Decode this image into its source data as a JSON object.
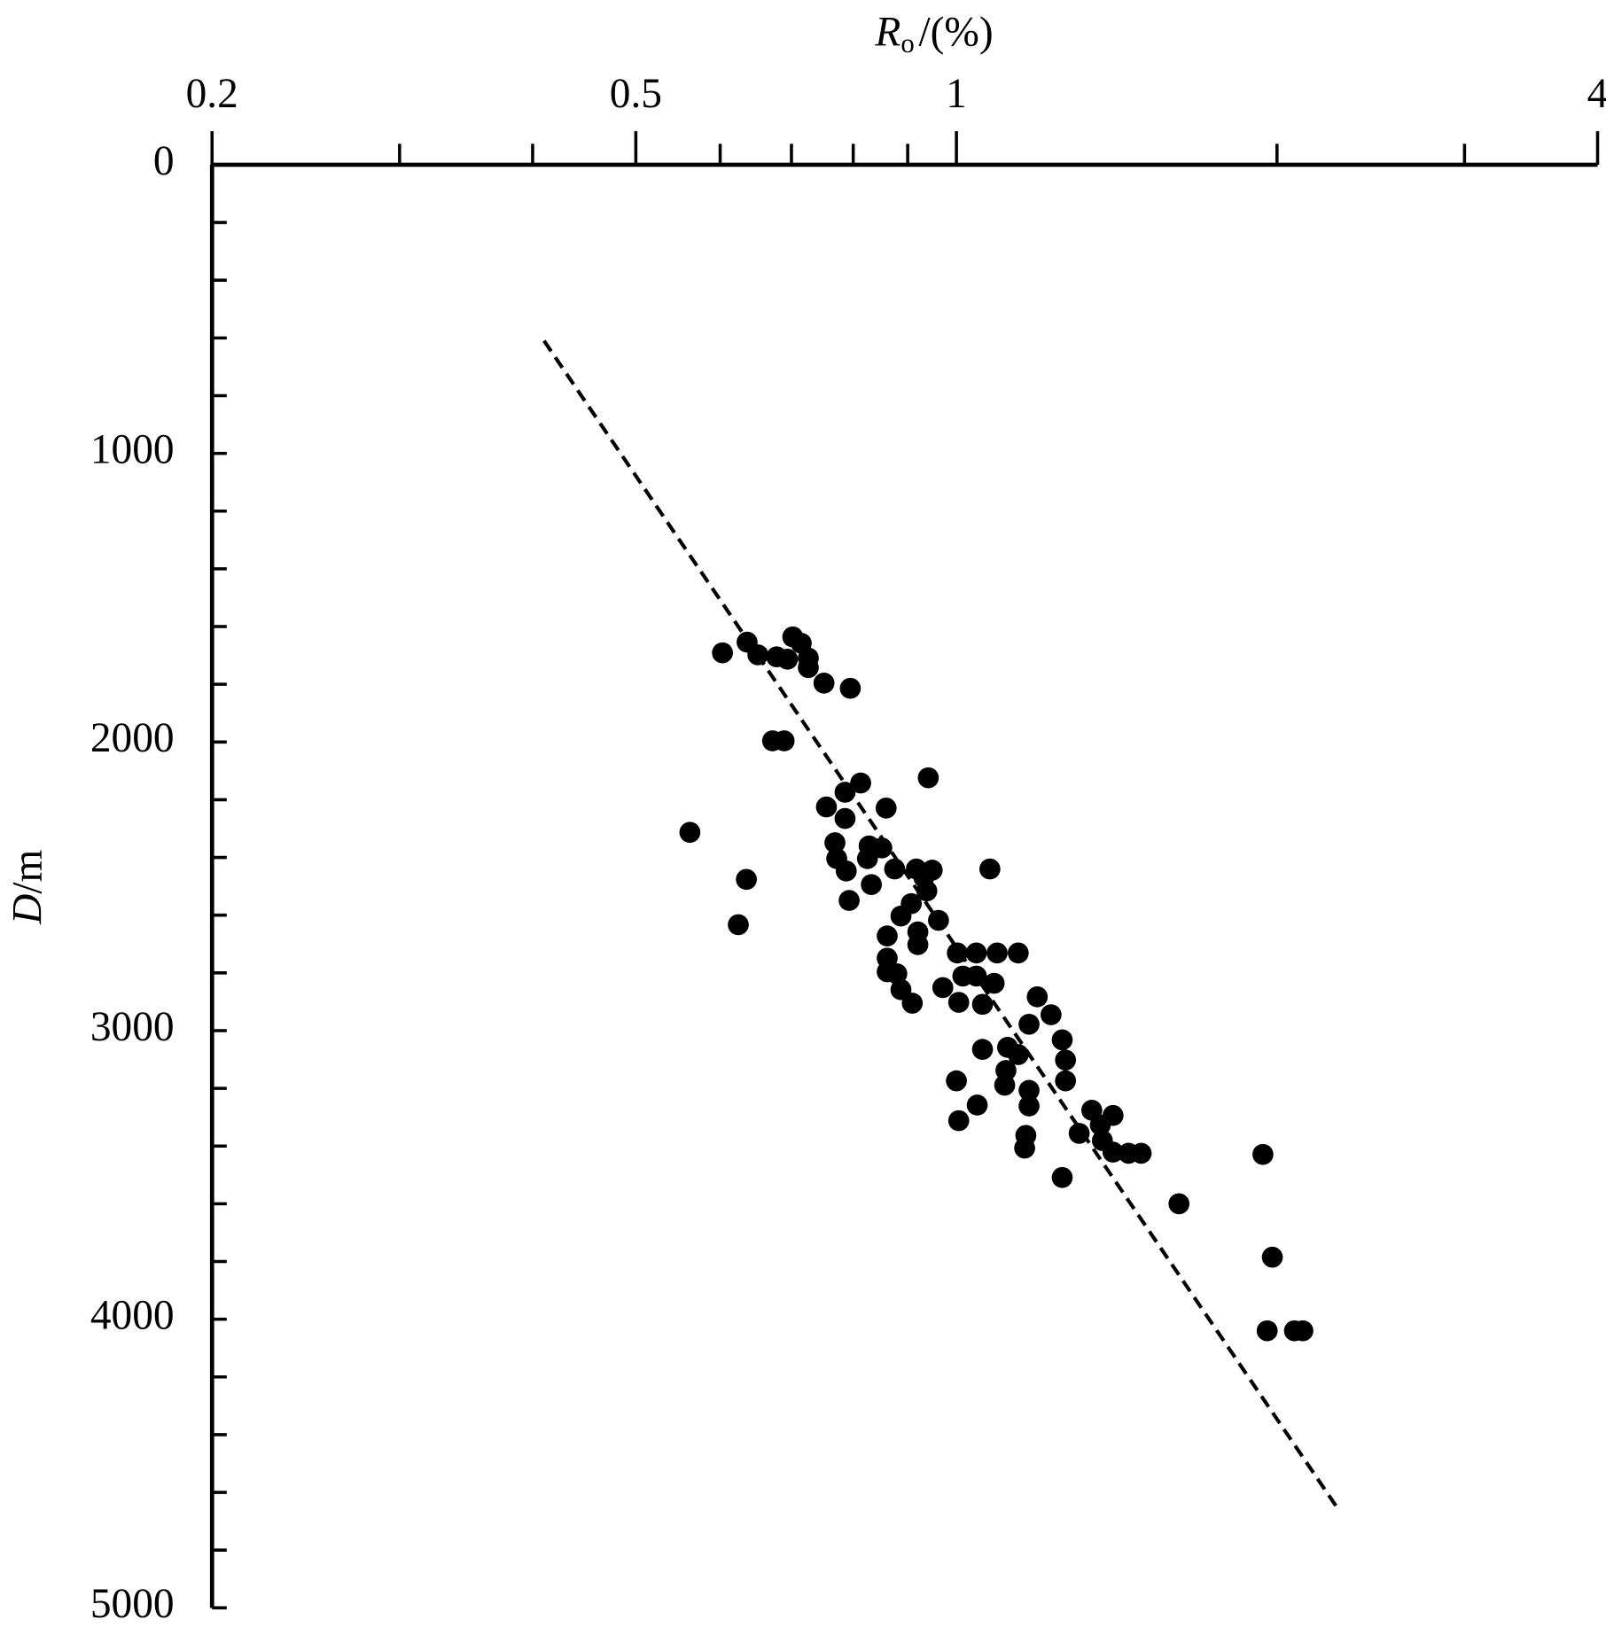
{
  "chart_data": {
    "type": "scatter",
    "x_label": {
      "symbol": "R",
      "subscript": "o",
      "unit": "/(%)"
    },
    "y_label": {
      "symbol": "D",
      "unit": "/m"
    },
    "xscale": "log",
    "xaxis_position": "top",
    "y_inverted": true,
    "xlim": [
      0.2,
      4
    ],
    "xticks": [
      0.2,
      0.5,
      1,
      4
    ],
    "xminor_ticks": [
      0.3,
      0.4,
      0.6,
      0.7,
      0.8,
      0.9,
      2,
      3
    ],
    "ylim": [
      0,
      5000
    ],
    "yticks": [
      0,
      1000,
      2000,
      3000,
      4000,
      5000
    ],
    "yminor_ticks": [
      200,
      400,
      600,
      800,
      1200,
      1400,
      1600,
      1800,
      2200,
      2400,
      2600,
      2800,
      3200,
      3400,
      3600,
      3800,
      4200,
      4400,
      4600,
      4800
    ],
    "color": "#000000",
    "x": [
      0.603,
      0.636,
      0.651,
      0.702,
      0.715,
      0.678,
      0.694,
      0.726,
      0.726,
      0.751,
      0.795,
      0.672,
      0.689,
      0.813,
      0.941,
      0.786,
      0.755,
      0.859,
      0.786,
      0.562,
      0.769,
      0.828,
      0.851,
      0.772,
      0.825,
      0.788,
      0.875,
      0.917,
      0.949,
      1.075,
      0.932,
      0.635,
      0.832,
      0.938,
      0.793,
      0.907,
      0.887,
      0.962,
      0.624,
      0.861,
      0.92,
      0.92,
      0.861,
      1.002,
      1.044,
      1.092,
      1.143,
      0.861,
      0.879,
      1.014,
      1.044,
      1.085,
      0.971,
      0.887,
      1.191,
      1.005,
      1.058,
      0.909,
      1.227,
      1.17,
      1.257,
      1.058,
      1.117,
      1.143,
      1.266,
      1.113,
      1.0,
      1.266,
      1.11,
      1.17,
      1.17,
      1.046,
      1.34,
      1.403,
      1.005,
      1.365,
      1.304,
      1.162,
      1.371,
      1.159,
      1.403,
      1.451,
      1.491,
      1.94,
      1.257,
      1.618,
      1.98,
      1.958,
      2.077,
      2.115
    ],
    "y": [
      1691,
      1654,
      1698,
      1636,
      1658,
      1705,
      1713,
      1709,
      1742,
      1796,
      1814,
      1996,
      1996,
      2142,
      2124,
      2174,
      2225,
      2229,
      2265,
      2313,
      2349,
      2360,
      2367,
      2404,
      2404,
      2447,
      2440,
      2440,
      2444,
      2440,
      2469,
      2476,
      2494,
      2516,
      2549,
      2560,
      2603,
      2618,
      2633,
      2672,
      2658,
      2702,
      2749,
      2731,
      2731,
      2731,
      2731,
      2796,
      2803,
      2811,
      2811,
      2836,
      2851,
      2858,
      2883,
      2902,
      2909,
      2905,
      2945,
      2978,
      3032,
      3065,
      3058,
      3083,
      3102,
      3138,
      3174,
      3174,
      3189,
      3207,
      3261,
      3258,
      3276,
      3294,
      3312,
      3327,
      3356,
      3363,
      3381,
      3407,
      3421,
      3425,
      3425,
      3429,
      3509,
      3600,
      3785,
      4040,
      4040,
      4040
    ],
    "trend_line": {
      "x": [
        0.41,
        2.28
      ],
      "y": [
        610,
        4655
      ],
      "style": "dashed"
    }
  }
}
